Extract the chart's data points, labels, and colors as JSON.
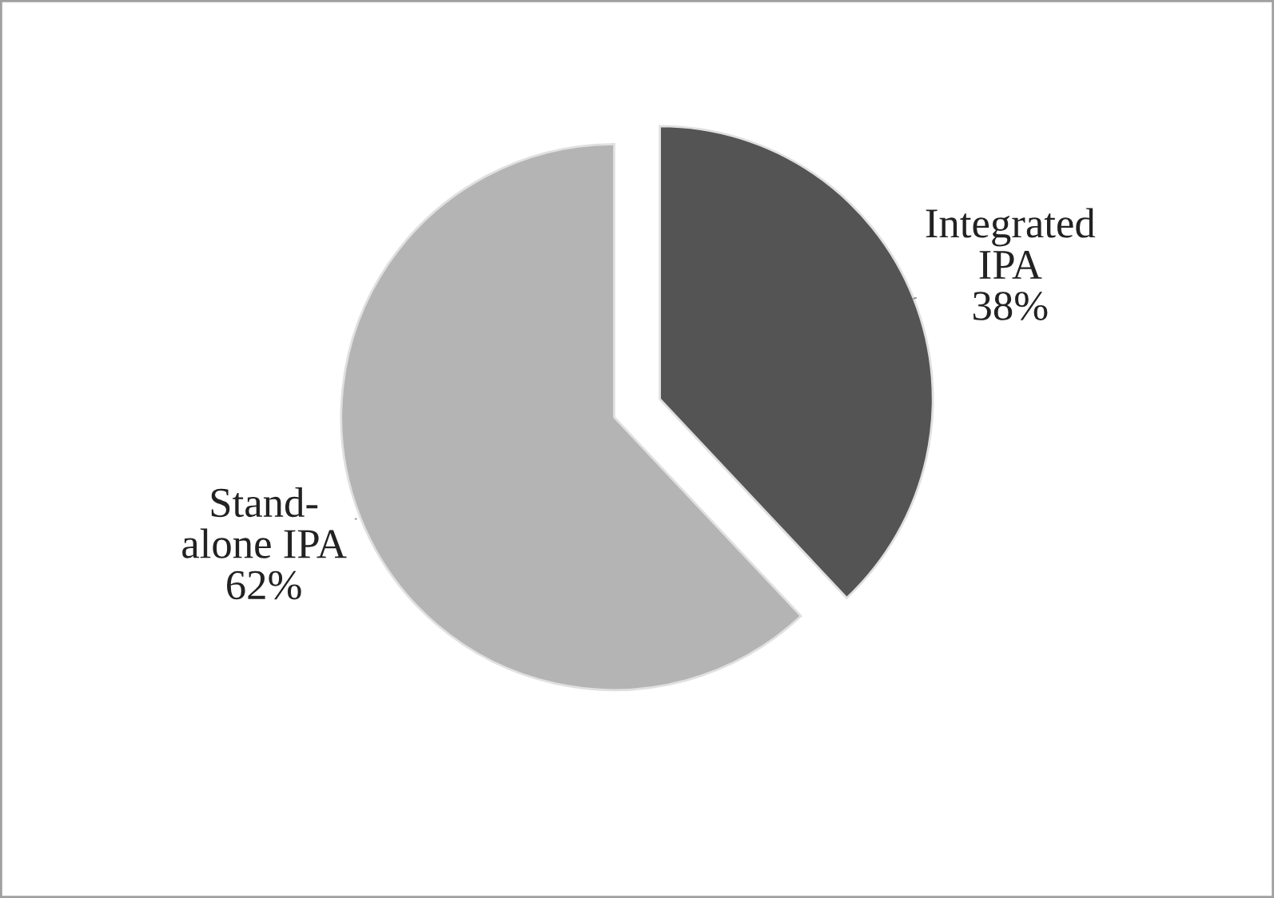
{
  "chart_data": {
    "type": "pie",
    "categories": [
      "Integrated IPA",
      "Stand-alone IPA"
    ],
    "values": [
      38,
      62
    ],
    "value_labels": [
      "38%",
      "62%"
    ],
    "colors": [
      "#545454",
      "#b4b4b4"
    ]
  }
}
